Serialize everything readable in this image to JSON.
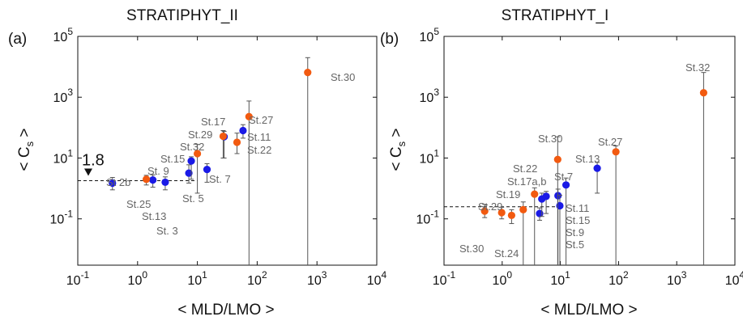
{
  "chart_data": [
    {
      "type": "scatter",
      "panel_label": "(a)",
      "title": "STRATIPHYT_II",
      "xlabel": "< MLD/LMO >",
      "ylabel": "< C_s >",
      "xscale": "log",
      "yscale": "log",
      "xlim": [
        0.1,
        10000
      ],
      "ylim": [
        0.003,
        100000
      ],
      "x_ticks": [
        {
          "value": 0.1,
          "base": "10",
          "exp": "-1"
        },
        {
          "value": 1,
          "base": "10",
          "exp": "0"
        },
        {
          "value": 10,
          "base": "10",
          "exp": "1"
        },
        {
          "value": 100,
          "base": "10",
          "exp": "2"
        },
        {
          "value": 1000,
          "base": "10",
          "exp": "3"
        },
        {
          "value": 10000,
          "base": "10",
          "exp": "4"
        }
      ],
      "y_ticks": [
        {
          "value": 0.1,
          "base": "10",
          "exp": "-1"
        },
        {
          "value": 10,
          "base": "10",
          "exp": "1"
        },
        {
          "value": 1000,
          "base": "10",
          "exp": "3"
        },
        {
          "value": 100000,
          "base": "10",
          "exp": "5"
        }
      ],
      "reference_line": {
        "y": 1.8,
        "x_end": 10,
        "label": "1.8"
      },
      "series": [
        {
          "color": "#1a1ae6",
          "points": [
            {
              "x": 0.38,
              "y": 1.5,
              "lo": 0.9,
              "hi": 2.3
            },
            {
              "x": 1.8,
              "y": 1.9,
              "lo": 1.1,
              "hi": 2.8
            },
            {
              "x": 2.9,
              "y": 1.6,
              "lo": 0.9,
              "hi": 2.4
            },
            {
              "x": 7.2,
              "y": 3.2,
              "lo": 1.5,
              "hi": 6.0
            },
            {
              "x": 7.9,
              "y": 8.0,
              "lo": 2.0,
              "hi": 11.0
            },
            {
              "x": 14.5,
              "y": 4.2,
              "lo": 1.6,
              "hi": 6.5
            },
            {
              "x": 28,
              "y": 50,
              "lo": 10,
              "hi": 75
            },
            {
              "x": 58,
              "y": 80,
              "lo": 45,
              "hi": 125
            }
          ]
        },
        {
          "color": "#f25a10",
          "points": [
            {
              "x": 1.4,
              "y": 2.0,
              "lo": 1.3,
              "hi": 2.7
            },
            {
              "x": 10,
              "y": 14,
              "lo": 0.7,
              "hi": 28
            },
            {
              "x": 27,
              "y": 52,
              "lo": 10,
              "hi": 80
            },
            {
              "x": 46,
              "y": 33,
              "lo": 14,
              "hi": 66
            },
            {
              "x": 73,
              "y": 230,
              "lo": 0.003,
              "hi": 750
            },
            {
              "x": 700,
              "y": 6500,
              "lo": 0.003,
              "hi": 20000
            }
          ]
        }
      ],
      "annotations": [
        "St.30",
        "St.27",
        "St.17",
        "St.11",
        "St.29",
        "St.22",
        "St.32",
        "St.15",
        "St. 9",
        "St. 7",
        "St. 5",
        "St 2b",
        "St.25",
        "St.13",
        "St. 3"
      ]
    },
    {
      "type": "scatter",
      "panel_label": "(b)",
      "title": "STRATIPHYT_I",
      "xlabel": "< MLD/LMO >",
      "ylabel": "< C_s >",
      "xscale": "log",
      "yscale": "log",
      "xlim": [
        0.1,
        10000
      ],
      "ylim": [
        0.003,
        100000
      ],
      "x_ticks": [
        {
          "value": 0.1,
          "base": "10",
          "exp": "-1"
        },
        {
          "value": 1,
          "base": "10",
          "exp": "0"
        },
        {
          "value": 10,
          "base": "10",
          "exp": "1"
        },
        {
          "value": 100,
          "base": "10",
          "exp": "2"
        },
        {
          "value": 1000,
          "base": "10",
          "exp": "3"
        },
        {
          "value": 10000,
          "base": "10",
          "exp": "4"
        }
      ],
      "y_ticks": [
        {
          "value": 0.1,
          "base": "10",
          "exp": "-1"
        },
        {
          "value": 10,
          "base": "10",
          "exp": "1"
        },
        {
          "value": 1000,
          "base": "10",
          "exp": "3"
        },
        {
          "value": 100000,
          "base": "10",
          "exp": "5"
        }
      ],
      "reference_line": {
        "y": 0.25,
        "x_end": 10,
        "label": ""
      },
      "series": [
        {
          "color": "#1a1ae6",
          "points": [
            {
              "x": 4.4,
              "y": 0.15,
              "lo": 0.09,
              "hi": 0.23
            },
            {
              "x": 4.8,
              "y": 0.45,
              "lo": 0.12,
              "hi": 0.7
            },
            {
              "x": 5.7,
              "y": 0.55,
              "lo": 0.15,
              "hi": 0.8
            },
            {
              "x": 9.1,
              "y": 0.58,
              "lo": 0.003,
              "hi": 0.95
            },
            {
              "x": 9.8,
              "y": 0.27,
              "lo": 0.003,
              "hi": 0.6
            },
            {
              "x": 12.5,
              "y": 1.3,
              "lo": 0.003,
              "hi": 2.2
            },
            {
              "x": 43,
              "y": 4.6,
              "lo": 0.7,
              "hi": 7.2
            }
          ]
        },
        {
          "color": "#f25a10",
          "points": [
            {
              "x": 0.5,
              "y": 0.18,
              "lo": 0.11,
              "hi": 0.3
            },
            {
              "x": 0.98,
              "y": 0.16,
              "lo": 0.1,
              "hi": 0.24
            },
            {
              "x": 1.45,
              "y": 0.13,
              "lo": 0.07,
              "hi": 0.2
            },
            {
              "x": 2.3,
              "y": 0.2,
              "lo": 0.003,
              "hi": 0.36
            },
            {
              "x": 3.6,
              "y": 0.65,
              "lo": 0.003,
              "hi": 1.05
            },
            {
              "x": 9.0,
              "y": 9.0,
              "lo": 0.003,
              "hi": 50
            },
            {
              "x": 90,
              "y": 16,
              "lo": 0.003,
              "hi": 25
            },
            {
              "x": 2900,
              "y": 1400,
              "lo": 0.003,
              "hi": 6500
            }
          ]
        }
      ],
      "annotations": [
        "St.32",
        "St.30",
        "St.27",
        "St.13",
        "St.22",
        "St.7",
        "St.17a,b",
        "St.19",
        "St.29",
        "St.11",
        "St.15",
        "St.9",
        "St.5",
        "St.30",
        "St.24"
      ]
    }
  ]
}
